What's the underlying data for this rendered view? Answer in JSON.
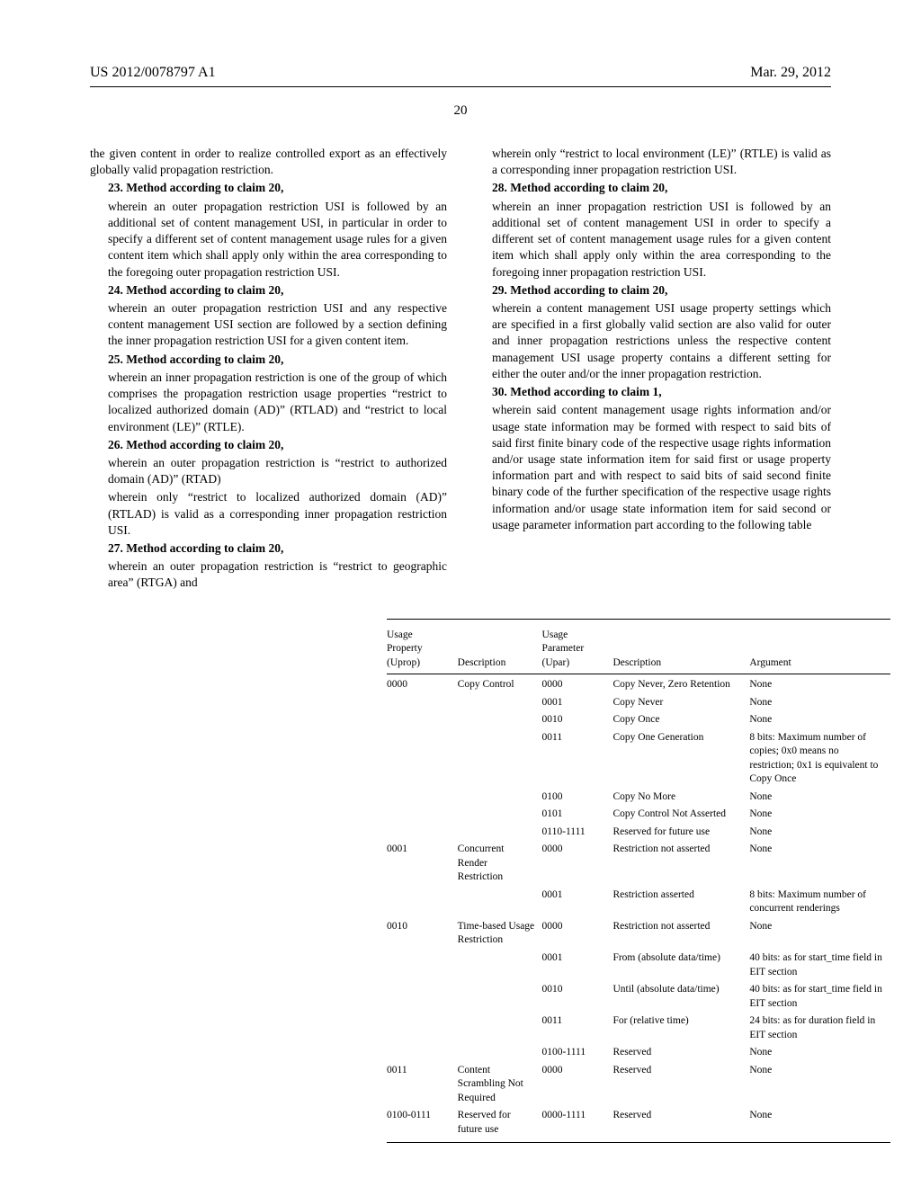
{
  "header": {
    "left": "US 2012/0078797 A1",
    "right": "Mar. 29, 2012",
    "page_num": "20"
  },
  "left_col": {
    "intro": "the given content in order to realize controlled export as an effectively globally valid propagation restriction.",
    "c23_head": "23. Method according to claim 20,",
    "c23_body": "wherein an outer propagation restriction USI is followed by an additional set of content management USI, in particular in order to specify a different set of content management usage rules for a given content item which shall apply only within the area corresponding to the foregoing outer propagation restriction USI.",
    "c24_head": "24. Method according to claim 20,",
    "c24_body": "wherein an outer propagation restriction USI and any respective content management USI section are followed by a section defining the inner propagation restriction USI for a given content item.",
    "c25_head": "25. Method according to claim 20,",
    "c25_body": "wherein an inner propagation restriction is one of the group of which comprises the propagation restriction usage properties “restrict to localized authorized domain (AD)” (RTLAD) and “restrict to local environment (LE)” (RTLE).",
    "c26_head": "26. Method according to claim 20,",
    "c26_body1": "wherein an outer propagation restriction is “restrict to authorized domain (AD)” (RTAD)",
    "c26_body2": "wherein only “restrict to localized authorized domain (AD)” (RTLAD) is valid as a corresponding inner propagation restriction USI.",
    "c27_head": "27. Method according to claim 20,",
    "c27_body": "wherein an outer propagation restriction is “restrict to geographic area” (RTGA) and"
  },
  "right_col": {
    "c27_cont": "wherein only “restrict to local environment (LE)” (RTLE) is valid as a corresponding inner propagation restriction USI.",
    "c28_head": "28. Method according to claim 20,",
    "c28_body": "wherein an inner propagation restriction USI is followed by an additional set of content management USI in order to specify a different set of content management usage rules for a given content item which shall apply only within the area corresponding to the foregoing inner propagation restriction USI.",
    "c29_head": "29. Method according to claim 20,",
    "c29_body": "wherein a content management USI usage property settings which are specified in a first globally valid section are also valid for outer and inner propagation restrictions unless the respective content management USI usage property contains a different setting for either the outer and/or the inner propagation restriction.",
    "c30_head": "30. Method according to claim 1,",
    "c30_body": "wherein said content management usage rights information and/or usage state information may be formed with respect to said bits of said first finite binary code of the respective usage rights information and/or usage state information item for said first or usage property information part and with respect to said bits of said second finite binary code of the further specification of the respective usage rights information and/or usage state information item for said second or usage parameter information part according to the following table"
  },
  "table": {
    "headers": {
      "uprop": "Usage\nProperty\n(Uprop)",
      "desc1": "Description",
      "upar": "Usage\nParameter\n(Upar)",
      "desc2": "Description",
      "arg": "Argument"
    },
    "rows": [
      {
        "uprop": "0000",
        "desc1": "Copy Control",
        "upar": "0000",
        "desc2": "Copy Never, Zero Retention",
        "arg": "None"
      },
      {
        "uprop": "",
        "desc1": "",
        "upar": "0001",
        "desc2": "Copy Never",
        "arg": "None"
      },
      {
        "uprop": "",
        "desc1": "",
        "upar": "0010",
        "desc2": "Copy Once",
        "arg": "None"
      },
      {
        "uprop": "",
        "desc1": "",
        "upar": "0011",
        "desc2": "Copy One Generation",
        "arg": "8 bits: Maximum number of copies; 0x0 means no restriction; 0x1 is equivalent to Copy Once"
      },
      {
        "uprop": "",
        "desc1": "",
        "upar": "0100",
        "desc2": "Copy No More",
        "arg": "None"
      },
      {
        "uprop": "",
        "desc1": "",
        "upar": "0101",
        "desc2": "Copy Control Not Asserted",
        "arg": "None"
      },
      {
        "uprop": "",
        "desc1": "",
        "upar": "0110-1111",
        "desc2": "Reserved for future use",
        "arg": "None"
      },
      {
        "uprop": "0001",
        "desc1": "Concurrent Render Restriction",
        "upar": "0000",
        "desc2": "Restriction not asserted",
        "arg": "None"
      },
      {
        "uprop": "",
        "desc1": "",
        "upar": "0001",
        "desc2": "Restriction asserted",
        "arg": "8 bits: Maximum number of concurrent renderings"
      },
      {
        "uprop": "0010",
        "desc1": "Time-based Usage Restriction",
        "upar": "0000",
        "desc2": "Restriction not asserted",
        "arg": "None"
      },
      {
        "uprop": "",
        "desc1": "",
        "upar": "0001",
        "desc2": "From (absolute data/time)",
        "arg": "40 bits: as for start_time field in EIT section"
      },
      {
        "uprop": "",
        "desc1": "",
        "upar": "0010",
        "desc2": "Until (absolute data/time)",
        "arg": "40 bits: as for start_time field in EIT section"
      },
      {
        "uprop": "",
        "desc1": "",
        "upar": "0011",
        "desc2": "For (relative time)",
        "arg": "24 bits: as for duration field in EIT section"
      },
      {
        "uprop": "",
        "desc1": "",
        "upar": "0100-1111",
        "desc2": "Reserved",
        "arg": "None"
      },
      {
        "uprop": "0011",
        "desc1": "Content Scrambling Not Required",
        "upar": "0000",
        "desc2": "Reserved",
        "arg": "None"
      },
      {
        "uprop": "0100-0111",
        "desc1": "Reserved for future use",
        "upar": "0000-1111",
        "desc2": "Reserved",
        "arg": "None"
      }
    ]
  }
}
